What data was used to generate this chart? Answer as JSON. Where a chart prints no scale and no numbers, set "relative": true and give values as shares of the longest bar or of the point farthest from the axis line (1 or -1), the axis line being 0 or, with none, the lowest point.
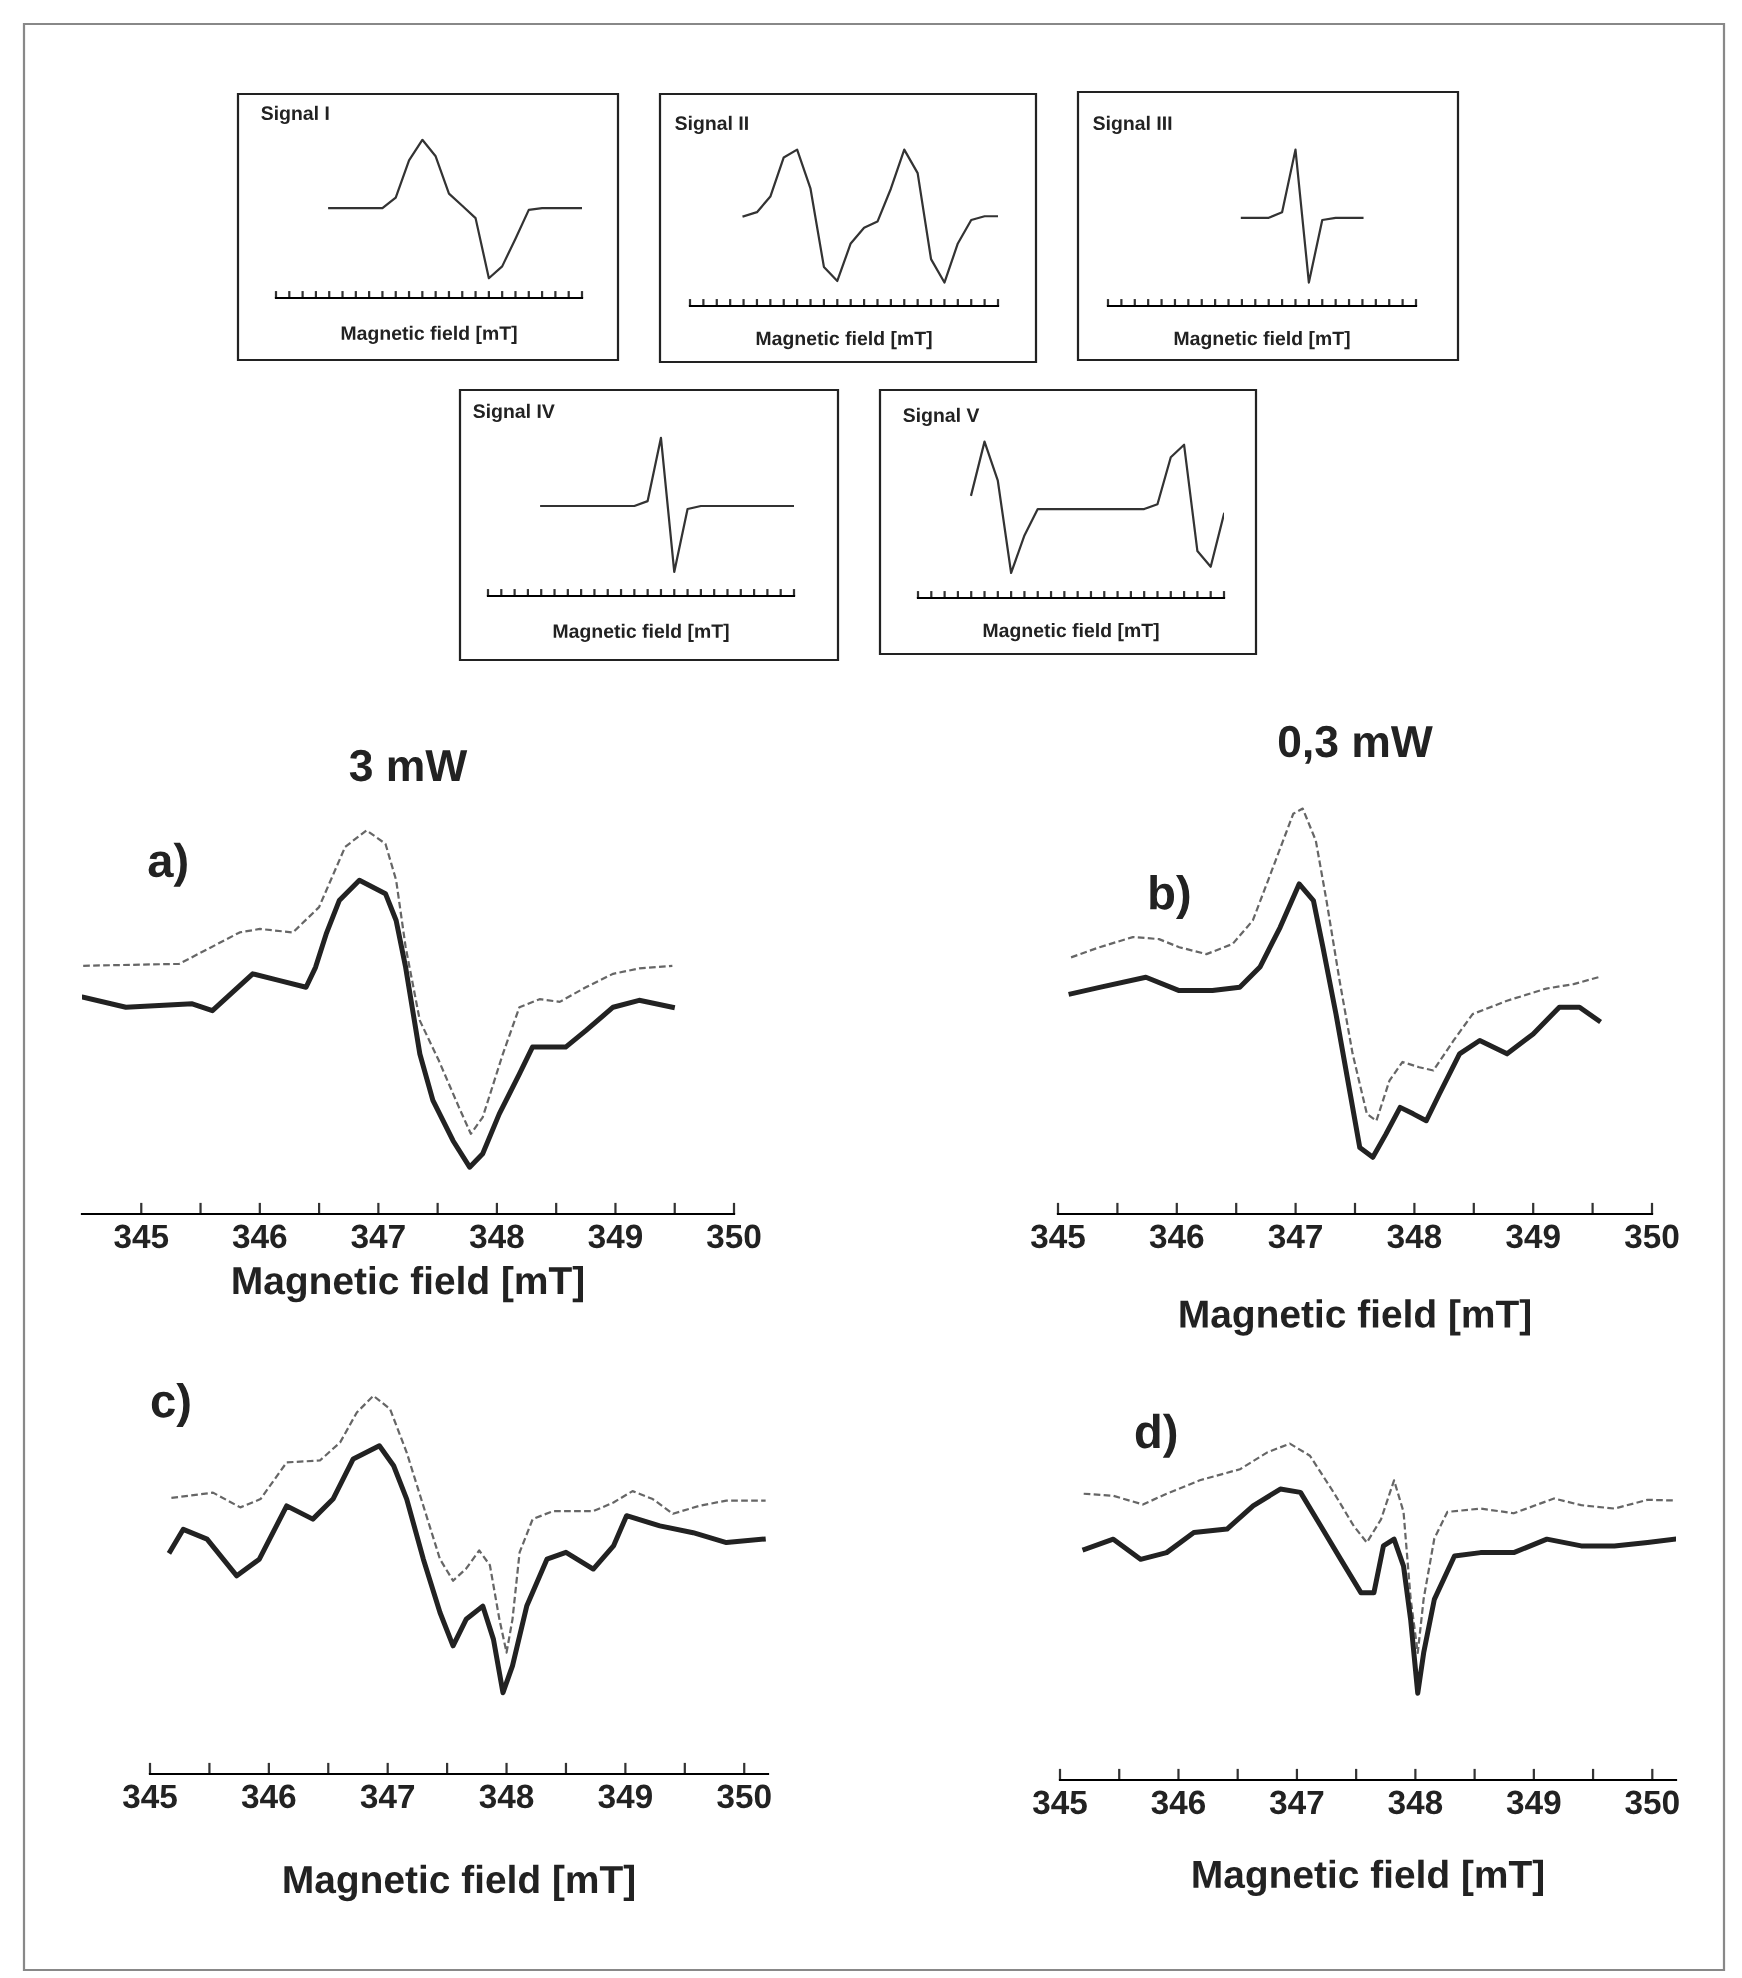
{
  "chart_data": [
    {
      "type": "line",
      "title": "Signal I",
      "xlabel": "Magnetic field [mT]",
      "relative": true,
      "tick_labels": false,
      "categories": [
        null,
        null,
        null,
        null,
        null,
        null,
        null,
        null,
        null,
        null,
        null,
        null,
        null,
        null,
        null,
        null,
        null,
        null,
        null,
        null,
        null,
        null,
        null,
        null
      ],
      "series": [
        {
          "color": "#333333",
          "line_style": "solid",
          "values": [
            null,
            null,
            null,
            null,
            0.568,
            0.568,
            0.568,
            0.568,
            0.568,
            0.635,
            0.87,
            1.0,
            0.896,
            0.66,
            0.583,
            0.505,
            0.125,
            0.2,
            0.375,
            0.557,
            0.568,
            0.568,
            0.568,
            0.568
          ]
        }
      ]
    },
    {
      "type": "line",
      "title": "Signal II",
      "xlabel": "Magnetic field [mT]",
      "relative": true,
      "tick_labels": false,
      "categories": [
        null,
        null,
        null,
        null,
        null,
        null,
        null,
        null,
        null,
        null,
        null,
        null,
        null,
        null,
        null,
        null,
        null,
        null,
        null,
        null,
        null,
        null,
        null,
        null
      ],
      "series": [
        {
          "color": "#333333",
          "line_style": "solid",
          "values": [
            null,
            null,
            null,
            null,
            0.574,
            0.6,
            0.7,
            0.95,
            1.0,
            0.75,
            0.25,
            0.16,
            0.4,
            0.5,
            0.54,
            0.75,
            1.0,
            0.85,
            0.3,
            0.15,
            0.4,
            0.55,
            0.574,
            0.574
          ]
        }
      ]
    },
    {
      "type": "line",
      "title": "Signal III",
      "xlabel": "Magnetic field [mT]",
      "relative": true,
      "tick_labels": false,
      "categories": [
        null,
        null,
        null,
        null,
        null,
        null,
        null,
        null,
        null,
        null,
        null,
        null,
        null,
        null,
        null,
        null,
        null,
        null,
        null,
        null,
        null,
        null,
        null,
        null
      ],
      "series": [
        {
          "color": "#333333",
          "line_style": "solid",
          "values": [
            null,
            null,
            null,
            null,
            null,
            null,
            null,
            null,
            null,
            null,
            0.564,
            0.564,
            0.564,
            0.6,
            1.0,
            0.15,
            0.55,
            0.564,
            0.564,
            0.564,
            null,
            null,
            null,
            null
          ]
        }
      ]
    },
    {
      "type": "line",
      "title": "Signal IV",
      "xlabel": "Magnetic field [mT]",
      "relative": true,
      "tick_labels": false,
      "categories": [
        null,
        null,
        null,
        null,
        null,
        null,
        null,
        null,
        null,
        null,
        null,
        null,
        null,
        null,
        null,
        null,
        null,
        null,
        null,
        null,
        null,
        null,
        null,
        null
      ],
      "series": [
        {
          "color": "#333333",
          "line_style": "solid",
          "values": [
            null,
            null,
            null,
            null,
            0.569,
            0.569,
            0.569,
            0.569,
            0.569,
            0.569,
            0.569,
            0.569,
            0.6,
            1.0,
            0.152,
            0.55,
            0.569,
            0.569,
            0.569,
            0.569,
            0.569,
            0.569,
            0.569,
            0.569
          ]
        }
      ]
    },
    {
      "type": "line",
      "title": "Signal V",
      "xlabel": "Magnetic field [mT]",
      "relative": true,
      "tick_labels": false,
      "categories": [
        null,
        null,
        null,
        null,
        null,
        null,
        null,
        null,
        null,
        null,
        null,
        null,
        null,
        null,
        null,
        null,
        null,
        null,
        null,
        null,
        null,
        null,
        null,
        null
      ],
      "series": [
        {
          "color": "#333333",
          "line_style": "solid",
          "values": [
            null,
            null,
            null,
            null,
            0.66,
            1.0,
            0.75,
            0.16,
            0.4,
            0.569,
            0.569,
            0.569,
            0.569,
            0.569,
            0.569,
            0.569,
            0.569,
            0.569,
            0.6,
            0.9,
            0.98,
            0.3,
            0.2,
            0.538
          ]
        }
      ]
    },
    {
      "type": "line",
      "title": "3 mW",
      "xlabel": "Magnetic field [mT]",
      "annotations": [
        "a)"
      ],
      "relative": true,
      "tick_labels": "x",
      "xlim": [
        344.5,
        350
      ],
      "xticks": [
        345,
        {
          "value": 345.5,
          "label": null
        },
        346,
        {
          "value": 346.5,
          "label": null
        },
        347,
        {
          "value": 347.5,
          "label": null
        },
        348,
        {
          "value": 348.5,
          "label": null
        },
        349,
        {
          "value": 349.5,
          "label": null
        },
        350
      ],
      "series": [
        {
          "color": "#666666",
          "line_style": "dashed",
          "x": [
            344.51,
            345.32,
            345.83,
            346.0,
            346.28,
            346.5,
            346.72,
            346.9,
            347.06,
            347.15,
            347.23,
            347.35,
            347.51,
            347.68,
            347.78,
            347.88,
            348.05,
            348.19,
            348.36,
            348.53,
            348.75,
            348.98,
            349.2,
            349.48
          ],
          "values": [
            0.647,
            0.652,
            0.734,
            0.743,
            0.734,
            0.8,
            0.957,
            1.0,
            0.965,
            0.87,
            0.696,
            0.504,
            0.4,
            0.278,
            0.209,
            0.252,
            0.417,
            0.539,
            0.56,
            0.553,
            0.591,
            0.626,
            0.64,
            0.647
          ]
        },
        {
          "color": "#222222",
          "line_style": "solid",
          "x": [
            344.51,
            344.87,
            345.43,
            345.6,
            345.94,
            346.16,
            346.39,
            346.47,
            346.56,
            346.67,
            346.84,
            347.06,
            347.15,
            347.23,
            347.35,
            347.46,
            347.63,
            347.77,
            347.88,
            348.02,
            348.19,
            348.3,
            348.58,
            348.75,
            348.98,
            349.2,
            349.48
          ],
          "values": [
            0.565,
            0.539,
            0.548,
            0.53,
            0.626,
            0.609,
            0.591,
            0.643,
            0.73,
            0.817,
            0.87,
            0.835,
            0.765,
            0.643,
            0.417,
            0.296,
            0.191,
            0.122,
            0.157,
            0.261,
            0.365,
            0.435,
            0.435,
            0.478,
            0.539,
            0.557,
            0.539
          ]
        }
      ]
    },
    {
      "type": "line",
      "title": "0,3 mW",
      "xlabel": "Magnetic field [mT]",
      "annotations": [
        "b)"
      ],
      "relative": true,
      "tick_labels": "x",
      "xlim": [
        345,
        350
      ],
      "xticks": [
        345,
        {
          "value": 345.5,
          "label": null
        },
        346,
        {
          "value": 346.5,
          "label": null
        },
        347,
        {
          "value": 347.5,
          "label": null
        },
        348,
        {
          "value": 348.5,
          "label": null
        },
        349,
        {
          "value": 349.5,
          "label": null
        },
        350
      ],
      "series": [
        {
          "color": "#666666",
          "line_style": "dashed",
          "x": [
            345.11,
            345.35,
            345.63,
            345.85,
            346.02,
            346.25,
            346.47,
            346.64,
            346.81,
            346.98,
            347.06,
            347.17,
            347.26,
            347.37,
            347.48,
            347.6,
            347.68,
            347.79,
            347.9,
            348.04,
            348.16,
            348.33,
            348.49,
            348.78,
            349.11,
            349.34,
            349.55
          ],
          "values": [
            0.633,
            0.658,
            0.683,
            0.678,
            0.658,
            0.641,
            0.666,
            0.724,
            0.855,
            0.987,
            1.0,
            0.921,
            0.773,
            0.576,
            0.395,
            0.247,
            0.23,
            0.329,
            0.375,
            0.362,
            0.354,
            0.428,
            0.493,
            0.526,
            0.556,
            0.567,
            0.584
          ]
        },
        {
          "color": "#222222",
          "line_style": "solid",
          "x": [
            345.11,
            345.35,
            345.74,
            346.02,
            346.3,
            346.53,
            346.7,
            346.87,
            347.03,
            347.15,
            347.23,
            347.34,
            347.46,
            347.54,
            347.65,
            347.76,
            347.88,
            347.99,
            348.1,
            348.21,
            348.38,
            348.55,
            348.78,
            349.0,
            349.22,
            349.39,
            349.55
          ],
          "values": [
            0.543,
            0.559,
            0.584,
            0.551,
            0.551,
            0.559,
            0.609,
            0.707,
            0.814,
            0.773,
            0.658,
            0.493,
            0.296,
            0.164,
            0.14,
            0.197,
            0.263,
            0.247,
            0.23,
            0.296,
            0.395,
            0.428,
            0.395,
            0.444,
            0.51,
            0.51,
            0.477
          ]
        }
      ]
    },
    {
      "type": "line",
      "xlabel": "Magnetic field [mT]",
      "annotations": [
        "c)"
      ],
      "relative": true,
      "tick_labels": "x",
      "xlim": [
        345,
        350.2
      ],
      "xticks": [
        345,
        {
          "value": 345.5,
          "label": null
        },
        346,
        {
          "value": 346.5,
          "label": null
        },
        347,
        {
          "value": 347.5,
          "label": null
        },
        348,
        {
          "value": 348.5,
          "label": null
        },
        349,
        {
          "value": 349.5,
          "label": null
        },
        350
      ],
      "series": [
        {
          "color": "#666666",
          "line_style": "dashed",
          "x": [
            345.18,
            345.53,
            345.76,
            345.93,
            346.15,
            346.43,
            346.6,
            346.74,
            346.88,
            347.02,
            347.16,
            347.3,
            347.44,
            347.55,
            347.66,
            347.77,
            347.86,
            347.94,
            348.0,
            348.05,
            348.11,
            348.22,
            348.39,
            348.73,
            348.9,
            349.06,
            349.23,
            349.4,
            349.62,
            349.85,
            350.18
          ],
          "values": [
            0.73,
            0.744,
            0.705,
            0.727,
            0.824,
            0.829,
            0.877,
            0.956,
            1.0,
            0.965,
            0.85,
            0.709,
            0.568,
            0.511,
            0.543,
            0.591,
            0.552,
            0.409,
            0.321,
            0.409,
            0.586,
            0.674,
            0.695,
            0.695,
            0.718,
            0.748,
            0.727,
            0.688,
            0.709,
            0.723,
            0.723
          ]
        },
        {
          "color": "#222222",
          "line_style": "solid",
          "x": [
            345.17,
            345.28,
            345.48,
            345.73,
            345.92,
            346.15,
            346.37,
            346.54,
            346.71,
            346.93,
            347.05,
            347.16,
            347.3,
            347.44,
            347.55,
            347.66,
            347.8,
            347.89,
            347.97,
            348.05,
            348.17,
            348.34,
            348.5,
            348.73,
            348.9,
            349.01,
            349.29,
            349.57,
            349.85,
            350.16
          ],
          "values": [
            0.589,
            0.647,
            0.621,
            0.524,
            0.568,
            0.709,
            0.674,
            0.727,
            0.833,
            0.868,
            0.815,
            0.727,
            0.568,
            0.427,
            0.339,
            0.409,
            0.444,
            0.356,
            0.215,
            0.286,
            0.444,
            0.568,
            0.586,
            0.542,
            0.603,
            0.683,
            0.656,
            0.638,
            0.612,
            0.621
          ]
        }
      ]
    },
    {
      "type": "line",
      "xlabel": "Magnetic field [mT]",
      "annotations": [
        "d)"
      ],
      "relative": true,
      "tick_labels": "x",
      "xlim": [
        345,
        350.2
      ],
      "xticks": [
        345,
        {
          "value": 345.5,
          "label": null
        },
        346,
        {
          "value": 346.5,
          "label": null
        },
        347,
        {
          "value": 347.5,
          "label": null
        },
        348,
        {
          "value": 348.5,
          "label": null
        },
        349,
        {
          "value": 349.5,
          "label": null
        },
        350
      ],
      "series": [
        {
          "color": "#666666",
          "line_style": "dashed",
          "x": [
            345.2,
            345.45,
            345.7,
            345.9,
            346.18,
            346.52,
            346.75,
            346.94,
            347.11,
            347.31,
            347.48,
            347.59,
            347.71,
            347.82,
            347.9,
            347.96,
            348.02,
            348.07,
            348.16,
            348.27,
            348.55,
            348.83,
            349.17,
            349.4,
            349.68,
            349.96,
            350.19
          ],
          "values": [
            0.851,
            0.845,
            0.819,
            0.851,
            0.891,
            0.924,
            0.974,
            1.0,
            0.964,
            0.855,
            0.755,
            0.706,
            0.775,
            0.891,
            0.797,
            0.539,
            0.378,
            0.539,
            0.718,
            0.797,
            0.807,
            0.793,
            0.837,
            0.817,
            0.807,
            0.833,
            0.831
          ]
        },
        {
          "color": "#222222",
          "line_style": "solid",
          "x": [
            345.21,
            345.45,
            345.68,
            345.9,
            346.13,
            346.41,
            346.63,
            346.86,
            347.03,
            347.2,
            347.37,
            347.54,
            347.65,
            347.73,
            347.82,
            347.9,
            347.96,
            348.02,
            348.07,
            348.16,
            348.33,
            348.55,
            348.83,
            349.11,
            349.4,
            349.68,
            349.96,
            350.19
          ],
          "values": [
            0.686,
            0.716,
            0.656,
            0.676,
            0.736,
            0.746,
            0.815,
            0.865,
            0.855,
            0.756,
            0.656,
            0.557,
            0.557,
            0.696,
            0.716,
            0.636,
            0.477,
            0.258,
            0.378,
            0.537,
            0.666,
            0.676,
            0.676,
            0.716,
            0.696,
            0.696,
            0.706,
            0.716
          ]
        }
      ]
    }
  ]
}
